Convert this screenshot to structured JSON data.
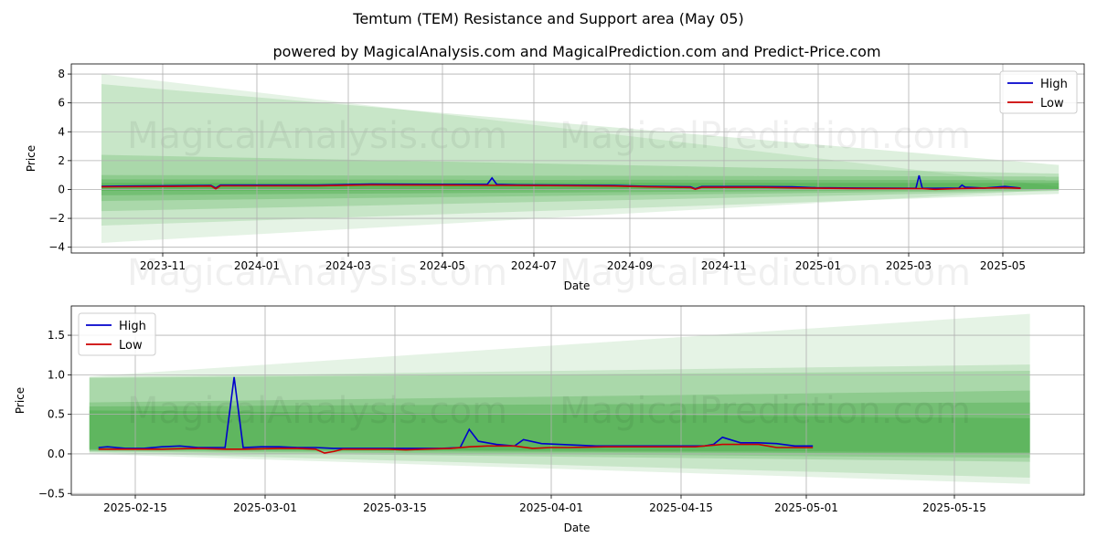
{
  "figure": {
    "title": "Temtum (TEM) Resistance and Support area (May 05)",
    "subtitle": "powered by MagicalAnalysis.com and MagicalPrediction.com and Predict-Price.com",
    "watermarks": [
      "MagicalAnalysis.com",
      "MagicalPrediction.com"
    ]
  },
  "chart_data": [
    {
      "type": "line",
      "xlabel": "Date",
      "ylabel": "Price",
      "xlim": [
        "2023-09-13",
        "2025-06-12"
      ],
      "ylim": [
        -4.4,
        8.7
      ],
      "x_ticks": [
        "2023-11",
        "2024-01",
        "2024-03",
        "2024-05",
        "2024-07",
        "2024-09",
        "2024-11",
        "2025-01",
        "2025-03",
        "2025-05"
      ],
      "y_ticks": [
        "−4",
        "−2",
        "0",
        "2",
        "4",
        "6",
        "8"
      ],
      "y_tick_values": [
        -4,
        -2,
        0,
        2,
        4,
        6,
        8
      ],
      "grid": true,
      "legend": "top-right",
      "legend_entries": [
        "High",
        "Low"
      ],
      "colors": {
        "High": "#0000cc",
        "Low": "#cc0000",
        "band": "#2ca02c"
      },
      "series": [
        {
          "name": "High",
          "x": [
            "2023-10-02",
            "2023-11-01",
            "2023-12-10",
            "2023-12-13",
            "2023-12-16",
            "2024-01-10",
            "2024-02-15",
            "2024-03-20",
            "2024-05-10",
            "2024-06-01",
            "2024-06-04",
            "2024-06-07",
            "2024-06-20",
            "2024-08-20",
            "2024-09-10",
            "2024-10-07",
            "2024-10-10",
            "2024-10-14",
            "2024-11-20",
            "2024-12-10",
            "2024-12-25",
            "2025-01-20",
            "2025-02-26",
            "2025-02-28",
            "2025-03-02",
            "2025-03-10",
            "2025-03-25",
            "2025-03-27",
            "2025-03-29",
            "2025-04-10",
            "2025-04-23",
            "2025-05-03"
          ],
          "values": [
            0.22,
            0.25,
            0.28,
            0.1,
            0.3,
            0.3,
            0.3,
            0.38,
            0.35,
            0.35,
            0.8,
            0.35,
            0.32,
            0.28,
            0.22,
            0.18,
            0.05,
            0.2,
            0.2,
            0.18,
            0.12,
            0.1,
            0.08,
            0.97,
            0.08,
            0.08,
            0.1,
            0.31,
            0.16,
            0.1,
            0.21,
            0.1
          ]
        },
        {
          "name": "Low",
          "x": [
            "2023-10-02",
            "2023-11-01",
            "2023-12-10",
            "2023-12-13",
            "2023-12-16",
            "2024-01-10",
            "2024-02-15",
            "2024-03-20",
            "2024-05-10",
            "2024-06-20",
            "2024-08-20",
            "2024-09-10",
            "2024-10-07",
            "2024-10-10",
            "2024-10-14",
            "2024-11-20",
            "2024-12-25",
            "2025-01-20",
            "2025-03-02",
            "2025-03-10",
            "2025-03-25",
            "2025-04-23",
            "2025-05-03"
          ],
          "values": [
            0.18,
            0.2,
            0.24,
            0.05,
            0.25,
            0.25,
            0.26,
            0.32,
            0.3,
            0.28,
            0.24,
            0.18,
            0.14,
            0.02,
            0.15,
            0.15,
            0.09,
            0.07,
            0.06,
            0.01,
            0.07,
            0.12,
            0.08
          ]
        }
      ],
      "bands": [
        {
          "x_start": "2023-10-02",
          "x_end": "2025-05-27",
          "lower_start": -3.7,
          "upper_start": 8.0,
          "lower_end": 0.0,
          "upper_end": 0.2
        },
        {
          "x_start": "2023-10-02",
          "x_end": "2025-05-27",
          "lower_start": -2.5,
          "upper_start": 7.3,
          "lower_end": -0.3,
          "upper_end": 1.7
        },
        {
          "x_start": "2023-10-02",
          "x_end": "2025-05-27",
          "lower_start": -1.5,
          "upper_start": 2.4,
          "lower_end": -0.1,
          "upper_end": 1.1
        },
        {
          "x_start": "2023-10-02",
          "x_end": "2025-05-27",
          "lower_start": -0.8,
          "upper_start": 1.0,
          "lower_end": -0.05,
          "upper_end": 0.9
        },
        {
          "x_start": "2023-10-02",
          "x_end": "2025-05-27",
          "lower_start": -0.4,
          "upper_start": 0.7,
          "lower_end": 0.0,
          "upper_end": 0.65
        },
        {
          "x_start": "2023-10-02",
          "x_end": "2025-05-27",
          "lower_start": -0.1,
          "upper_start": 0.45,
          "lower_end": 0.02,
          "upper_end": 0.45
        }
      ]
    },
    {
      "type": "line",
      "xlabel": "Date",
      "ylabel": "Price",
      "xlim": [
        "2025-02-10",
        "2025-06-02"
      ],
      "ylim": [
        -0.52,
        1.87
      ],
      "x_ticks": [
        "2025-02-15",
        "2025-03-01",
        "2025-03-15",
        "2025-04-01",
        "2025-04-15",
        "2025-05-01",
        "2025-05-15"
      ],
      "y_ticks": [
        "−0.5",
        "0.0",
        "0.5",
        "1.0",
        "1.5"
      ],
      "y_tick_values": [
        -0.5,
        0.0,
        0.5,
        1.0,
        1.5
      ],
      "grid": true,
      "legend": "top-left",
      "legend_entries": [
        "High",
        "Low"
      ],
      "colors": {
        "High": "#0000cc",
        "Low": "#cc0000",
        "band": "#2ca02c"
      },
      "series": [
        {
          "name": "High",
          "x": [
            "2025-02-13",
            "2025-02-14",
            "2025-02-16",
            "2025-02-18",
            "2025-02-20",
            "2025-02-22",
            "2025-02-24",
            "2025-02-26",
            "2025-02-27",
            "2025-02-28",
            "2025-03-01",
            "2025-03-03",
            "2025-03-05",
            "2025-03-07",
            "2025-03-09",
            "2025-03-11",
            "2025-03-13",
            "2025-03-15",
            "2025-03-17",
            "2025-03-19",
            "2025-03-21",
            "2025-03-23",
            "2025-03-25",
            "2025-03-26",
            "2025-03-27",
            "2025-03-29",
            "2025-03-31",
            "2025-04-01",
            "2025-04-03",
            "2025-04-05",
            "2025-04-07",
            "2025-04-09",
            "2025-04-11",
            "2025-04-13",
            "2025-04-15",
            "2025-04-17",
            "2025-04-19",
            "2025-04-21",
            "2025-04-22",
            "2025-04-23",
            "2025-04-25",
            "2025-04-27",
            "2025-04-29",
            "2025-05-01",
            "2025-05-03"
          ],
          "values": [
            0.08,
            0.09,
            0.07,
            0.07,
            0.09,
            0.1,
            0.08,
            0.08,
            0.08,
            0.97,
            0.08,
            0.09,
            0.09,
            0.08,
            0.08,
            0.07,
            0.07,
            0.07,
            0.07,
            0.07,
            0.07,
            0.07,
            0.08,
            0.31,
            0.16,
            0.12,
            0.1,
            0.18,
            0.13,
            0.12,
            0.11,
            0.1,
            0.1,
            0.1,
            0.1,
            0.1,
            0.1,
            0.1,
            0.12,
            0.21,
            0.14,
            0.14,
            0.13,
            0.1,
            0.1
          ]
        },
        {
          "name": "Low",
          "x": [
            "2025-02-13",
            "2025-02-16",
            "2025-02-20",
            "2025-02-24",
            "2025-02-27",
            "2025-03-01",
            "2025-03-05",
            "2025-03-07",
            "2025-03-09",
            "2025-03-10",
            "2025-03-11",
            "2025-03-12",
            "2025-03-15",
            "2025-03-17",
            "2025-03-19",
            "2025-03-21",
            "2025-03-24",
            "2025-03-26",
            "2025-03-28",
            "2025-03-31",
            "2025-04-02",
            "2025-04-04",
            "2025-04-06",
            "2025-04-10",
            "2025-04-16",
            "2025-04-20",
            "2025-04-23",
            "2025-04-25",
            "2025-04-27",
            "2025-04-29",
            "2025-05-01",
            "2025-05-03"
          ],
          "values": [
            0.06,
            0.06,
            0.06,
            0.07,
            0.06,
            0.06,
            0.07,
            0.07,
            0.06,
            0.01,
            0.03,
            0.06,
            0.06,
            0.06,
            0.05,
            0.06,
            0.07,
            0.09,
            0.1,
            0.1,
            0.07,
            0.08,
            0.08,
            0.09,
            0.09,
            0.09,
            0.12,
            0.12,
            0.12,
            0.08,
            0.08,
            0.08
          ]
        }
      ],
      "bands": [
        {
          "x_start": "2025-02-12",
          "x_end": "2025-05-27",
          "lower_start": 0.0,
          "upper_start": 0.98,
          "lower_end": -0.38,
          "upper_end": 1.77
        },
        {
          "x_start": "2025-02-12",
          "x_end": "2025-05-27",
          "lower_start": 0.02,
          "upper_start": 0.97,
          "lower_end": -0.3,
          "upper_end": 1.13
        },
        {
          "x_start": "2025-02-12",
          "x_end": "2025-05-27",
          "lower_start": 0.03,
          "upper_start": 0.96,
          "lower_end": -0.1,
          "upper_end": 1.05
        },
        {
          "x_start": "2025-02-12",
          "x_end": "2025-05-27",
          "lower_start": 0.04,
          "upper_start": 0.65,
          "lower_end": -0.05,
          "upper_end": 0.8
        },
        {
          "x_start": "2025-02-12",
          "x_end": "2025-05-27",
          "lower_start": 0.05,
          "upper_start": 0.6,
          "lower_end": 0.0,
          "upper_end": 0.65
        },
        {
          "x_start": "2025-02-12",
          "x_end": "2025-05-27",
          "lower_start": 0.06,
          "upper_start": 0.55,
          "lower_end": 0.02,
          "upper_end": 0.45
        }
      ]
    }
  ]
}
